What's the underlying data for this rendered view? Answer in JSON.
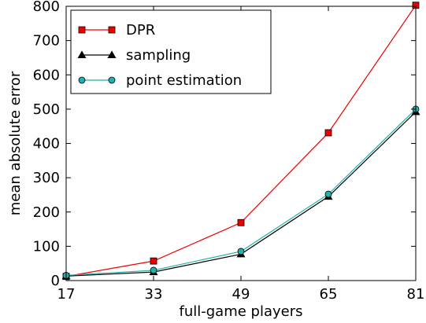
{
  "chart_data": {
    "type": "line",
    "xlabel": "full-game players",
    "ylabel": "mean absolute error",
    "categories": [
      17,
      33,
      49,
      65,
      81
    ],
    "x_ticks": [
      "17",
      "33",
      "49",
      "65",
      "81"
    ],
    "y_ticks": [
      "0",
      "100",
      "200",
      "300",
      "400",
      "500",
      "600",
      "700",
      "800"
    ],
    "xlim": [
      17,
      81
    ],
    "ylim": [
      0,
      800
    ],
    "grid": false,
    "legend_position": "top-left",
    "series": [
      {
        "name": "DPR",
        "color": "#ee0000",
        "marker": "square",
        "values": [
          12,
          57,
          169,
          431,
          803
        ]
      },
      {
        "name": "sampling",
        "color": "#000000",
        "marker": "triangle",
        "values": [
          13,
          25,
          77,
          245,
          492
        ]
      },
      {
        "name": "point estimation",
        "color": "#20b2aa",
        "marker": "circle",
        "values": [
          15,
          30,
          85,
          252,
          500
        ]
      }
    ]
  }
}
